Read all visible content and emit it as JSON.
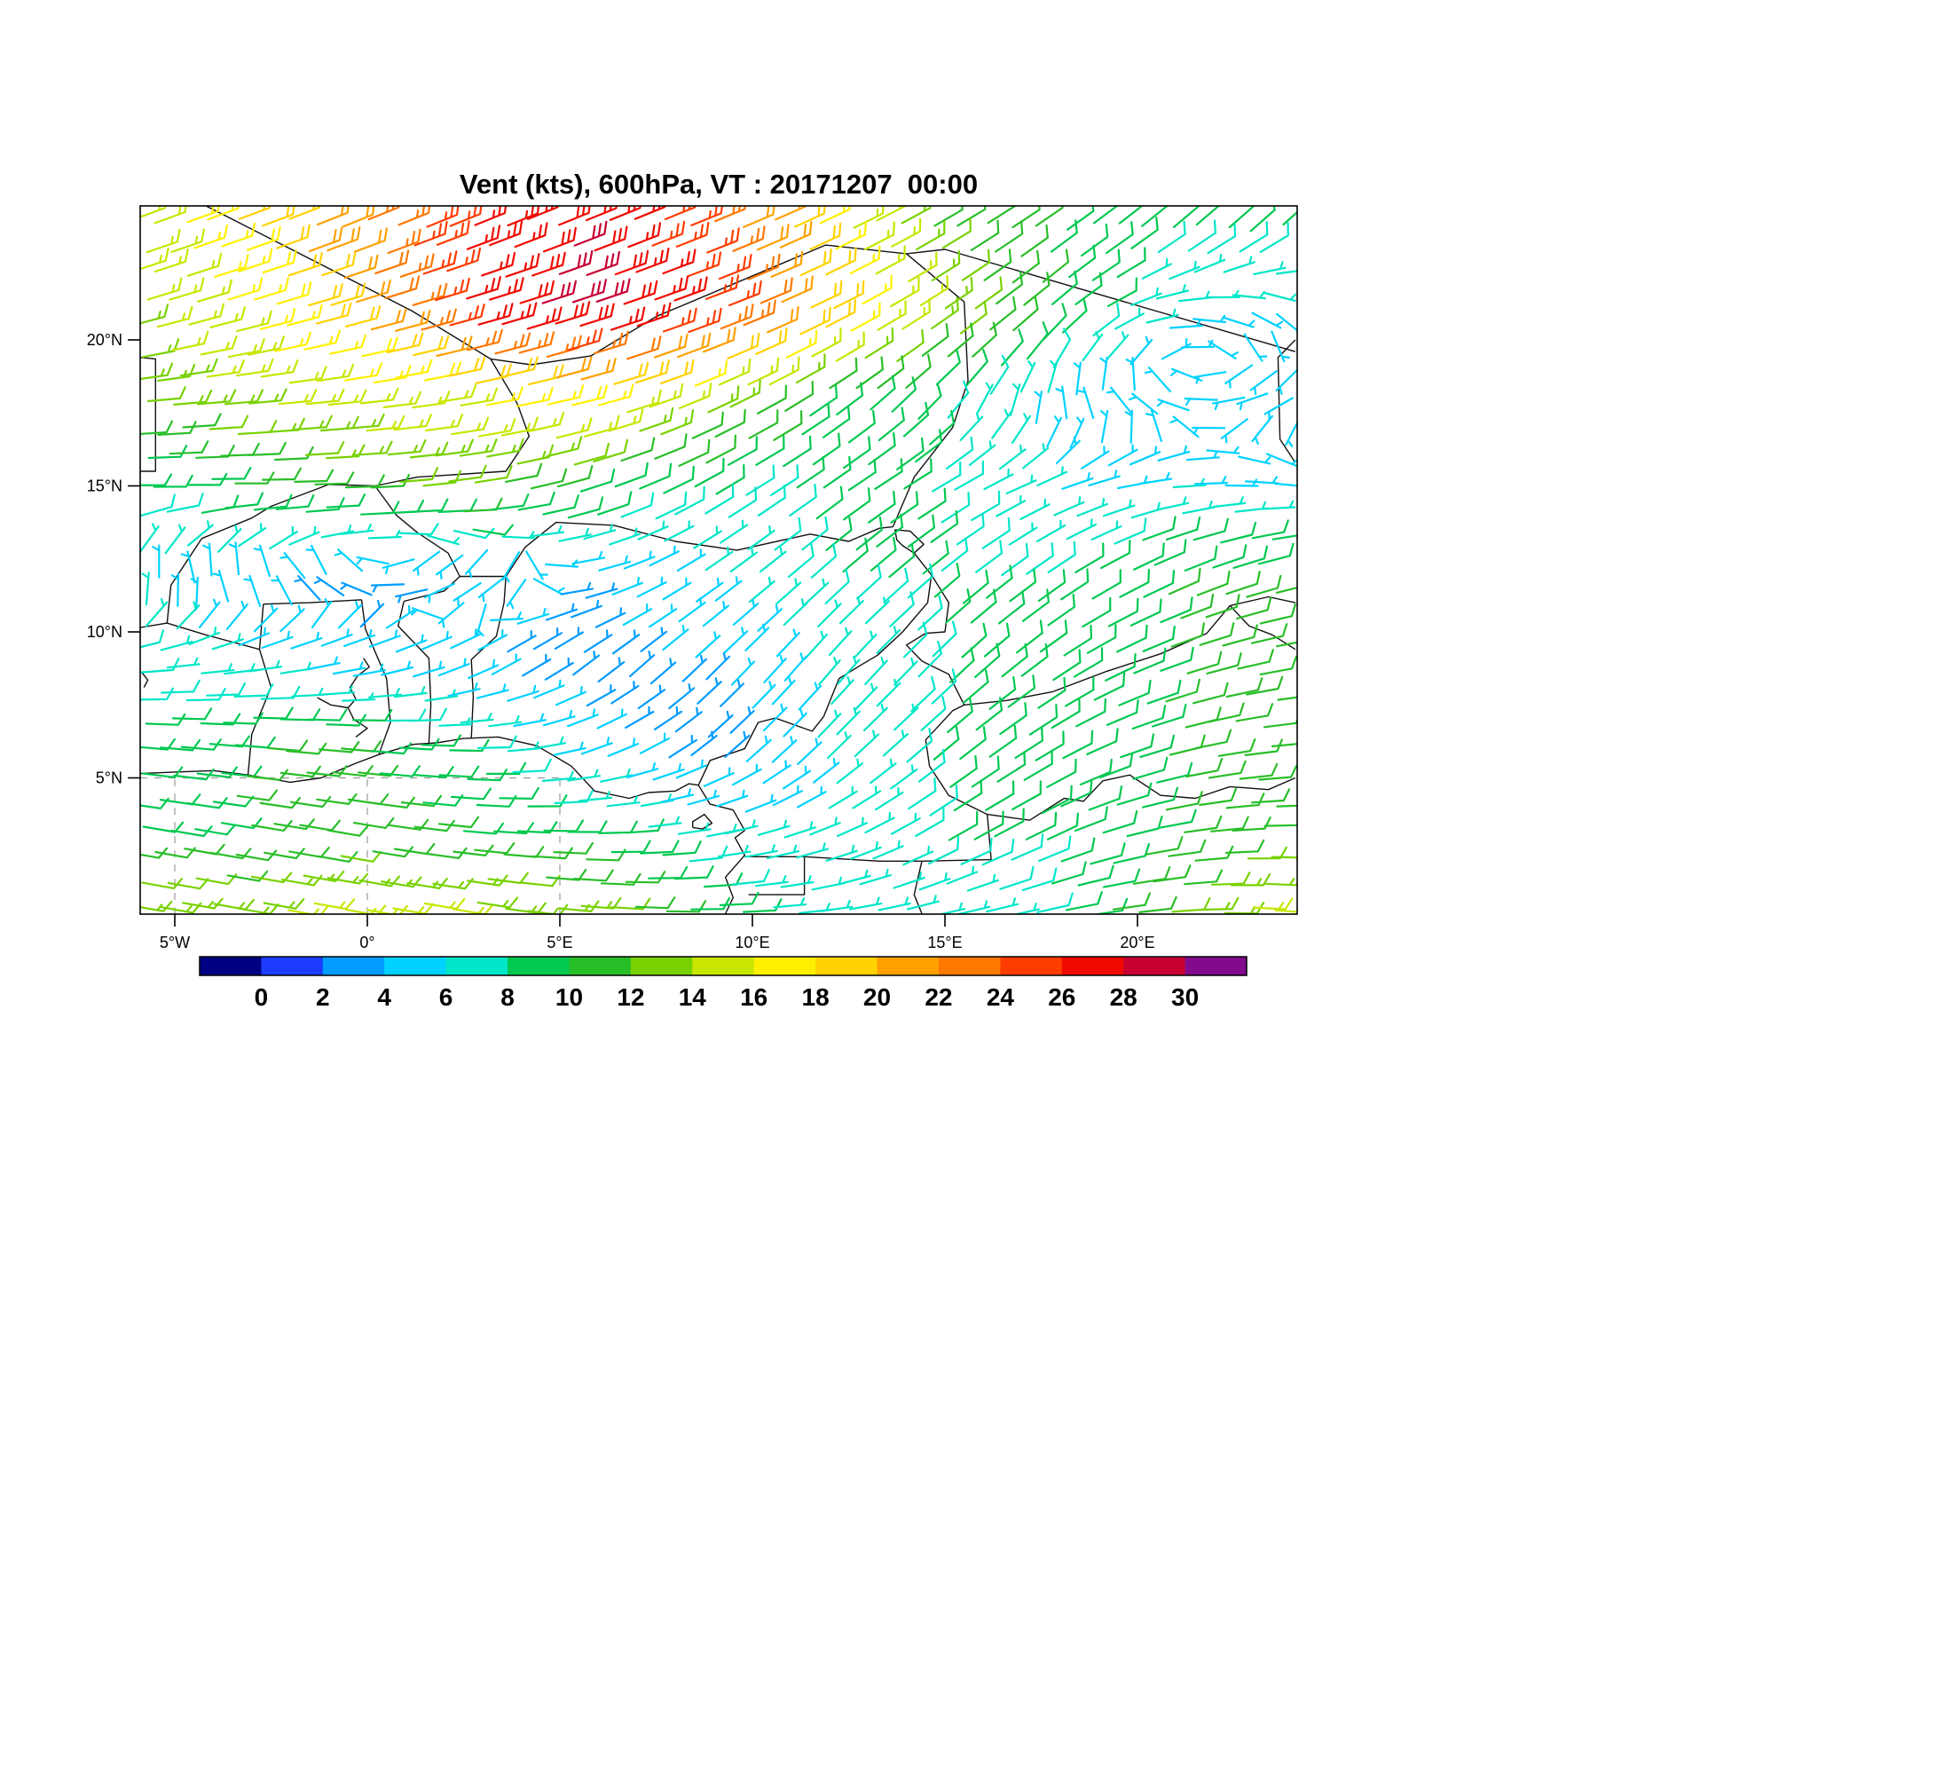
{
  "chart_data": {
    "type": "wind-barb-map",
    "title": "Vent (kts), 600hPa, VT : 20171207  00:00",
    "variable": "Vent",
    "units": "kts",
    "level": "600hPa",
    "valid_time": "20171207 00:00",
    "lon_range": [
      -5.9,
      24.15
    ],
    "lat_range": [
      0.33,
      24.59
    ],
    "x_axis": {
      "ticks": [
        {
          "label": "5°W",
          "value": -5
        },
        {
          "label": "0°",
          "value": 0
        },
        {
          "label": "5°E",
          "value": 5
        },
        {
          "label": "10°E",
          "value": 10
        },
        {
          "label": "15°E",
          "value": 15
        },
        {
          "label": "20°E",
          "value": 20
        }
      ]
    },
    "y_axis": {
      "ticks": [
        {
          "label": "20°N",
          "value": 20
        },
        {
          "label": "15°N",
          "value": 15
        },
        {
          "label": "10°N",
          "value": 10
        },
        {
          "label": "5°N",
          "value": 5
        }
      ]
    },
    "colorbar": {
      "tick_labels": [
        "0",
        "2",
        "4",
        "6",
        "8",
        "10",
        "12",
        "14",
        "16",
        "18",
        "20",
        "22",
        "24",
        "26",
        "28",
        "30"
      ],
      "boundary_values": [
        0,
        2,
        4,
        6,
        8,
        10,
        12,
        14,
        16,
        18,
        20,
        22,
        24,
        26,
        28,
        30
      ],
      "colors": [
        "#000082",
        "#1E3CFF",
        "#009CFF",
        "#00D2FF",
        "#00E6C8",
        "#00C850",
        "#28BE28",
        "#78D200",
        "#C8E600",
        "#FFF000",
        "#FFD200",
        "#FFA000",
        "#FF7800",
        "#FF3C00",
        "#F00A00",
        "#C80032",
        "#820A8C"
      ]
    },
    "wind_grid": {
      "comment": "Wind speed (kts) and meteorological FROM-direction (deg) estimated on a 3x3 degree grid read from the barb colors/orientations",
      "lons": [
        -6,
        -3,
        0,
        3,
        6,
        9,
        12,
        15,
        18,
        21,
        24
      ],
      "lats": [
        24,
        21,
        18,
        15,
        12,
        9,
        6,
        3,
        0
      ],
      "speed_kts": [
        [
          14,
          18,
          22,
          26,
          28,
          24,
          18,
          12,
          10,
          8,
          8
        ],
        [
          14,
          16,
          20,
          27,
          29,
          26,
          20,
          14,
          10,
          6,
          6
        ],
        [
          12,
          14,
          15,
          16,
          18,
          14,
          10,
          8,
          5,
          4,
          6
        ],
        [
          8,
          10,
          12,
          12,
          10,
          8,
          8,
          8,
          6,
          6,
          6
        ],
        [
          6,
          4,
          3,
          5,
          4,
          6,
          8,
          8,
          8,
          10,
          10
        ],
        [
          8,
          6,
          5,
          4,
          3,
          4,
          6,
          8,
          8,
          10,
          12
        ],
        [
          8,
          10,
          10,
          8,
          5,
          3,
          6,
          8,
          8,
          10,
          12
        ],
        [
          10,
          10,
          11,
          10,
          9,
          7,
          6,
          8,
          8,
          10,
          12
        ],
        [
          14,
          14,
          16,
          15,
          14,
          10,
          6,
          6,
          8,
          12,
          16
        ]
      ],
      "dir_from_deg": [
        [
          70,
          70,
          68,
          68,
          68,
          68,
          65,
          60,
          55,
          50,
          48
        ],
        [
          74,
          74,
          74,
          74,
          72,
          70,
          64,
          56,
          48,
          85,
          120
        ],
        [
          85,
          85,
          84,
          80,
          76,
          66,
          55,
          40,
          350,
          285,
          240
        ],
        [
          90,
          90,
          88,
          82,
          72,
          60,
          55,
          60,
          70,
          85,
          95
        ],
        [
          350,
          320,
          275,
          235,
          80,
          55,
          48,
          50,
          55,
          65,
          75
        ],
        [
          85,
          80,
          75,
          60,
          50,
          45,
          40,
          45,
          55,
          70,
          80
        ],
        [
          95,
          95,
          95,
          90,
          70,
          50,
          45,
          50,
          60,
          75,
          85
        ],
        [
          100,
          100,
          100,
          95,
          90,
          80,
          70,
          60,
          65,
          80,
          90
        ],
        [
          100,
          100,
          100,
          100,
          95,
          90,
          85,
          80,
          80,
          85,
          95
        ]
      ]
    },
    "gridlines": [
      {
        "axis": "lat",
        "value": 5,
        "from": -5.9,
        "to": 5.0
      },
      {
        "axis": "lon",
        "value": -5,
        "from": 0.33,
        "to": 5.0
      },
      {
        "axis": "lon",
        "value": 0,
        "from": 0.33,
        "to": 5.0
      },
      {
        "axis": "lon",
        "value": 5,
        "from": 0.33,
        "to": 5.0
      }
    ],
    "map_borders": [
      [
        [
          -5.9,
          5.15
        ],
        [
          -5.0,
          5.2
        ],
        [
          -4.0,
          5.25
        ],
        [
          -3.1,
          5.1
        ],
        [
          -2.0,
          4.85
        ],
        [
          -1.2,
          5.0
        ],
        [
          -0.3,
          5.5
        ],
        [
          0.3,
          5.8
        ],
        [
          1.2,
          6.15
        ],
        [
          1.8,
          6.2
        ],
        [
          2.5,
          6.35
        ],
        [
          3.4,
          6.4
        ],
        [
          4.4,
          6.1
        ],
        [
          5.3,
          5.4
        ],
        [
          5.9,
          4.55
        ],
        [
          6.8,
          4.3
        ],
        [
          7.3,
          4.5
        ],
        [
          8.0,
          4.55
        ],
        [
          8.35,
          4.8
        ],
        [
          8.6,
          4.75
        ],
        [
          8.9,
          4.1
        ],
        [
          9.5,
          3.9
        ],
        [
          9.8,
          3.2
        ],
        [
          9.55,
          2.95
        ],
        [
          9.8,
          2.35
        ],
        [
          9.3,
          1.6
        ],
        [
          9.5,
          0.9
        ],
        [
          9.3,
          0.35
        ]
      ],
      [
        [
          8.45,
          3.3
        ],
        [
          8.7,
          3.25
        ],
        [
          8.95,
          3.45
        ],
        [
          8.75,
          3.75
        ],
        [
          8.45,
          3.5
        ],
        [
          8.45,
          3.3
        ]
      ],
      [
        [
          -3.1,
          5.1
        ],
        [
          -3.0,
          6.5
        ],
        [
          -2.5,
          8.1
        ],
        [
          -2.8,
          9.4
        ],
        [
          -2.7,
          10.95
        ]
      ],
      [
        [
          0.3,
          5.8
        ],
        [
          0.6,
          6.9
        ],
        [
          0.5,
          8.4
        ],
        [
          -0.05,
          10.1
        ],
        [
          -0.15,
          11.1
        ]
      ],
      [
        [
          1.6,
          6.2
        ],
        [
          1.65,
          7.5
        ],
        [
          1.6,
          9.1
        ],
        [
          0.8,
          10.2
        ],
        [
          0.95,
          11.05
        ]
      ],
      [
        [
          2.7,
          6.35
        ],
        [
          2.75,
          7.8
        ],
        [
          2.7,
          9.05
        ],
        [
          3.35,
          9.85
        ],
        [
          3.55,
          11.0
        ],
        [
          3.6,
          11.9
        ]
      ],
      [
        [
          -5.9,
          10.15
        ],
        [
          -5.2,
          10.3
        ],
        [
          -4.2,
          9.9
        ],
        [
          -2.8,
          9.4
        ]
      ],
      [
        [
          -2.7,
          10.95
        ],
        [
          -1.5,
          11.0
        ],
        [
          -0.15,
          11.1
        ]
      ],
      [
        [
          0.95,
          11.05
        ],
        [
          2.0,
          11.4
        ],
        [
          2.4,
          11.9
        ],
        [
          3.6,
          11.9
        ]
      ],
      [
        [
          -5.2,
          10.3
        ],
        [
          -5.1,
          11.6
        ],
        [
          -4.3,
          13.2
        ],
        [
          -3.0,
          13.9
        ],
        [
          -2.5,
          14.3
        ],
        [
          -1.0,
          15.05
        ],
        [
          0.2,
          15.0
        ],
        [
          0.75,
          14.0
        ],
        [
          1.3,
          13.4
        ],
        [
          2.1,
          12.7
        ],
        [
          2.4,
          11.9
        ]
      ],
      [
        [
          -4.2,
          24.6
        ],
        [
          1.15,
          21.0
        ],
        [
          3.2,
          19.35
        ],
        [
          4.25,
          19.15
        ],
        [
          5.8,
          19.45
        ],
        [
          7.5,
          20.8
        ],
        [
          11.9,
          23.25
        ],
        [
          14.0,
          22.95
        ]
      ],
      [
        [
          3.2,
          19.35
        ],
        [
          3.9,
          17.8
        ],
        [
          4.2,
          16.7
        ],
        [
          3.6,
          15.5
        ],
        [
          1.3,
          15.3
        ],
        [
          0.2,
          15.0
        ]
      ],
      [
        [
          14.0,
          22.95
        ],
        [
          15.0,
          23.1
        ],
        [
          24.1,
          19.6
        ]
      ],
      [
        [
          24.1,
          20.0
        ],
        [
          23.65,
          19.4
        ],
        [
          23.7,
          16.6
        ],
        [
          24.1,
          15.8
        ]
      ],
      [
        [
          14.0,
          22.95
        ],
        [
          15.5,
          21.3
        ],
        [
          15.6,
          18.6
        ],
        [
          15.2,
          17.0
        ],
        [
          14.2,
          15.3
        ],
        [
          13.65,
          13.6
        ]
      ],
      [
        [
          3.6,
          11.9
        ],
        [
          4.1,
          12.9
        ],
        [
          4.9,
          13.75
        ],
        [
          6.4,
          13.65
        ],
        [
          8.0,
          13.1
        ],
        [
          9.6,
          12.8
        ],
        [
          11.5,
          13.35
        ],
        [
          12.5,
          13.1
        ],
        [
          13.3,
          13.55
        ],
        [
          13.65,
          13.6
        ]
      ],
      [
        [
          13.7,
          13.5
        ],
        [
          14.1,
          13.45
        ],
        [
          14.45,
          13.0
        ],
        [
          14.2,
          12.7
        ],
        [
          13.9,
          12.95
        ],
        [
          13.75,
          13.15
        ],
        [
          13.7,
          13.5
        ]
      ],
      [
        [
          14.2,
          12.7
        ],
        [
          14.65,
          11.95
        ],
        [
          14.55,
          11.0
        ],
        [
          13.9,
          10.0
        ],
        [
          13.25,
          9.2
        ],
        [
          12.8,
          8.85
        ],
        [
          12.25,
          8.4
        ],
        [
          11.85,
          7.1
        ],
        [
          11.55,
          6.6
        ],
        [
          10.6,
          7.05
        ],
        [
          10.15,
          6.9
        ],
        [
          9.8,
          6.0
        ],
        [
          8.9,
          5.6
        ],
        [
          8.6,
          4.75
        ]
      ],
      [
        [
          14.65,
          11.95
        ],
        [
          15.1,
          11.0
        ],
        [
          15.0,
          10.0
        ],
        [
          14.5,
          9.95
        ],
        [
          14.0,
          9.55
        ],
        [
          14.4,
          9.0
        ],
        [
          15.1,
          8.55
        ],
        [
          15.5,
          7.5
        ],
        [
          15.2,
          7.3
        ],
        [
          14.5,
          6.3
        ],
        [
          14.6,
          5.4
        ],
        [
          15.1,
          4.4
        ],
        [
          16.1,
          3.75
        ],
        [
          16.2,
          2.2
        ]
      ],
      [
        [
          15.5,
          7.5
        ],
        [
          16.6,
          7.65
        ],
        [
          17.8,
          7.95
        ],
        [
          19.2,
          8.65
        ],
        [
          20.6,
          9.25
        ],
        [
          21.8,
          9.95
        ],
        [
          22.4,
          10.9
        ],
        [
          23.4,
          11.2
        ],
        [
          24.1,
          11.0
        ]
      ],
      [
        [
          22.4,
          10.9
        ],
        [
          22.9,
          10.2
        ],
        [
          23.5,
          9.9
        ],
        [
          24.1,
          9.4
        ]
      ],
      [
        [
          16.1,
          3.75
        ],
        [
          17.2,
          3.55
        ],
        [
          18.1,
          4.3
        ],
        [
          18.6,
          4.2
        ],
        [
          19.1,
          4.9
        ],
        [
          19.8,
          5.1
        ],
        [
          20.6,
          4.4
        ],
        [
          21.5,
          4.3
        ],
        [
          22.4,
          4.7
        ],
        [
          23.4,
          4.6
        ],
        [
          24.1,
          5.0
        ]
      ],
      [
        [
          9.8,
          2.3
        ],
        [
          11.35,
          2.3
        ],
        [
          13.3,
          2.15
        ],
        [
          14.4,
          2.15
        ],
        [
          16.2,
          2.2
        ]
      ],
      [
        [
          9.9,
          1.0
        ],
        [
          11.35,
          1.0
        ],
        [
          11.35,
          2.3
        ]
      ],
      [
        [
          14.4,
          2.15
        ],
        [
          14.2,
          1.0
        ],
        [
          14.4,
          0.35
        ]
      ],
      [
        [
          -5.9,
          19.4
        ],
        [
          -5.5,
          19.35
        ],
        [
          -5.5,
          15.5
        ],
        [
          -5.9,
          15.5
        ]
      ],
      [
        [
          -0.3,
          6.4
        ],
        [
          0.0,
          6.7
        ],
        [
          -0.35,
          7.0
        ],
        [
          -0.5,
          7.4
        ],
        [
          -0.3,
          7.7
        ],
        [
          -0.45,
          8.1
        ],
        [
          -0.25,
          8.5
        ],
        [
          0.05,
          8.8
        ],
        [
          -0.1,
          9.1
        ]
      ],
      [
        [
          -0.5,
          7.4
        ],
        [
          -0.95,
          7.5
        ],
        [
          -1.3,
          7.75
        ]
      ],
      [
        [
          -5.85,
          8.6
        ],
        [
          -5.7,
          8.35
        ],
        [
          -5.8,
          8.1
        ]
      ]
    ]
  }
}
